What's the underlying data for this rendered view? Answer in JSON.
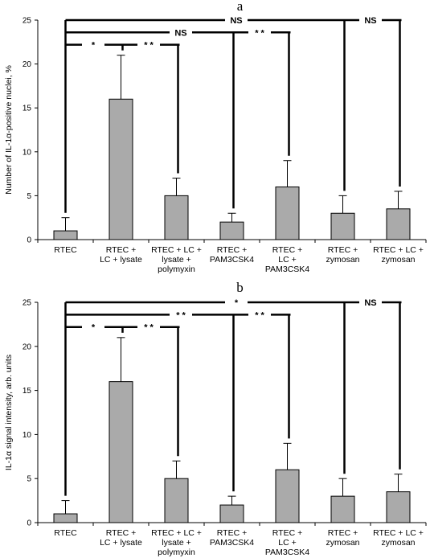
{
  "colors": {
    "bar": "#aaaaaa",
    "stroke": "#000000",
    "background": "#ffffff"
  },
  "chart_data": [
    {
      "type": "bar",
      "title": "a",
      "xlabel": "",
      "ylabel": "Number of IL-1α-positive nuclei, %",
      "ylim": [
        0,
        25
      ],
      "yticks": [
        0,
        5,
        10,
        15,
        20,
        25
      ],
      "categories": [
        [
          "RTEC"
        ],
        [
          "RTEC +",
          "LC + lysate"
        ],
        [
          "RTEC + LC +",
          "lysate +",
          "polymyxin"
        ],
        [
          "RTEC +",
          "PAM3CSK4"
        ],
        [
          "RTEC +",
          "LC +",
          "PAM3CSK4"
        ],
        [
          "RTEC +",
          "zymosan"
        ],
        [
          "RTEC + LC +",
          "zymosan"
        ]
      ],
      "values": [
        1,
        16,
        5,
        2,
        6,
        3,
        3.5
      ],
      "errors": [
        1.5,
        5,
        2,
        1,
        3,
        2,
        2
      ],
      "grid": false,
      "legend": "none",
      "significance": [
        {
          "label": "NS",
          "from": 0,
          "level": 25,
          "targets": [
            0,
            5,
            6
          ],
          "label_between": [
            0,
            5
          ],
          "label2": "NS",
          "label2_between": [
            5,
            6
          ]
        },
        {
          "label": "NS",
          "from": 0,
          "level": 23.6,
          "targets": [
            0,
            3,
            4
          ],
          "label_between": [
            0,
            3
          ],
          "label2": "* *",
          "label2_between": [
            3,
            4
          ]
        },
        {
          "label": "*",
          "from": 0,
          "level": 22.2,
          "targets": [
            0,
            1,
            2
          ],
          "label_between": [
            0,
            1
          ],
          "label2": "* *",
          "label2_between": [
            1,
            2
          ]
        }
      ]
    },
    {
      "type": "bar",
      "title": "b",
      "xlabel": "",
      "ylabel": "IL-1α signal intensity, arb. units",
      "ylim": [
        0,
        25
      ],
      "yticks": [
        0,
        5,
        10,
        15,
        20,
        25
      ],
      "categories": [
        [
          "RTEC"
        ],
        [
          "RTEC +",
          "LC + lysate"
        ],
        [
          "RTEC + LC +",
          "lysate +",
          "polymyxin"
        ],
        [
          "RTEC +",
          "PAM3CSK4"
        ],
        [
          "RTEC +",
          "LC +",
          "PAM3CSK4"
        ],
        [
          "RTEC +",
          "zymosan"
        ],
        [
          "RTEC + LC +",
          "zymosan"
        ]
      ],
      "values": [
        1,
        16,
        5,
        2,
        6,
        3,
        3.5
      ],
      "errors": [
        1.5,
        5,
        2,
        1,
        3,
        2,
        2
      ],
      "grid": false,
      "legend": "none",
      "significance": [
        {
          "label": "*",
          "from": 0,
          "level": 25,
          "targets": [
            0,
            5,
            6
          ],
          "label_between": [
            0,
            5
          ],
          "label2": "NS",
          "label2_between": [
            5,
            6
          ]
        },
        {
          "label": "* *",
          "from": 0,
          "level": 23.6,
          "targets": [
            0,
            3,
            4
          ],
          "label_between": [
            0,
            3
          ],
          "label2": "* *",
          "label2_between": [
            3,
            4
          ]
        },
        {
          "label": "*",
          "from": 0,
          "level": 22.2,
          "targets": [
            0,
            1,
            2
          ],
          "label_between": [
            0,
            1
          ],
          "label2": "* *",
          "label2_between": [
            1,
            2
          ]
        }
      ]
    }
  ]
}
